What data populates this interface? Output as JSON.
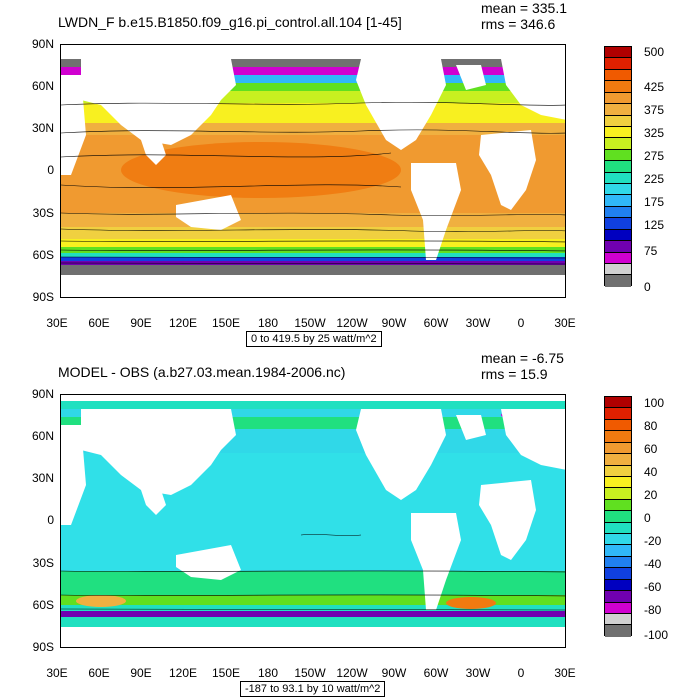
{
  "panels": [
    {
      "title": "LWDN_F b.e15.B1850.f09_g16.pi_control.all.104 [1-45]",
      "mean": "mean = 335.1",
      "rms": "rms = 346.6",
      "contour_info": "0 to 419.5 by 25 watt/m^2",
      "colorbar_labels": [
        "500",
        "425",
        "375",
        "325",
        "275",
        "225",
        "175",
        "125",
        "75",
        "0"
      ],
      "colors": [
        "#b00000",
        "#e02000",
        "#f05a00",
        "#f07a10",
        "#f09a30",
        "#f0b040",
        "#f0d040",
        "#f8f020",
        "#c8f020",
        "#60e020",
        "#20e080",
        "#20e0c0",
        "#30d8e8",
        "#30b8f8",
        "#2080f0",
        "#1040e0",
        "#0000c0",
        "#7000b0",
        "#d000d0",
        "#d0d0d0",
        "#707070"
      ]
    },
    {
      "title": "MODEL - OBS (a.b27.03.mean.1984-2006.nc)",
      "mean": "mean = -6.75",
      "rms": "rms = 15.9",
      "contour_info": "-187 to 93.1 by 10 watt/m^2",
      "colorbar_labels": [
        "100",
        "80",
        "60",
        "40",
        "20",
        "0",
        "-20",
        "-40",
        "-60",
        "-80",
        "-100"
      ],
      "colors": [
        "#b00000",
        "#e02000",
        "#f05a00",
        "#f07a10",
        "#f09a30",
        "#f0b040",
        "#f0d040",
        "#f8f020",
        "#c8f020",
        "#60e020",
        "#20e080",
        "#20e0c0",
        "#30d8e8",
        "#30b8f8",
        "#2080f0",
        "#1040e0",
        "#0000c0",
        "#7000b0",
        "#d000d0",
        "#d0d0d0",
        "#707070"
      ]
    }
  ],
  "lat_labels": [
    "90N",
    "60N",
    "30N",
    "0",
    "30S",
    "60S",
    "90S"
  ],
  "lon_labels": [
    "30E",
    "60E",
    "90E",
    "120E",
    "150E",
    "180",
    "150W",
    "120W",
    "90W",
    "60W",
    "30W",
    "0",
    "30E"
  ]
}
